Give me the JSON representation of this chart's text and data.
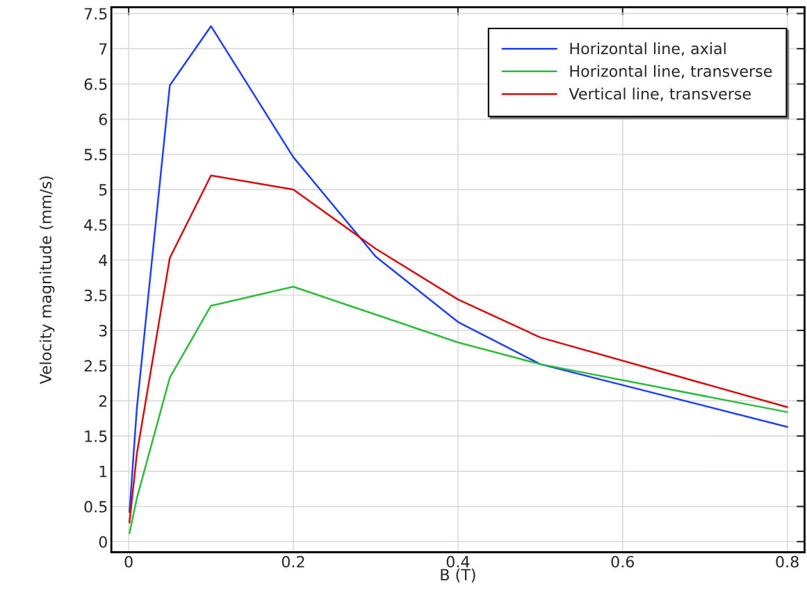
{
  "chart_data": {
    "type": "line",
    "xlabel": "B (T)",
    "ylabel": "Velocity magnitude (mm/s)",
    "xlim": [
      -0.021,
      0.821
    ],
    "ylim": [
      -0.15,
      7.59
    ],
    "xticks": [
      0,
      0.2,
      0.4,
      0.6,
      0.8
    ],
    "yticks": [
      0,
      0.5,
      1,
      1.5,
      2,
      2.5,
      3,
      3.5,
      4,
      4.5,
      5,
      5.5,
      6,
      6.5,
      7,
      7.5
    ],
    "grid": true,
    "legend": "top right",
    "marker": "none",
    "line_style": "solid",
    "series": [
      {
        "name": "Horizontal line, axial",
        "color": "#1f3ff5",
        "x": [
          0.001,
          0.01,
          0.05,
          0.1,
          0.2,
          0.3,
          0.4,
          0.5,
          0.8
        ],
        "values": [
          0.42,
          1.9,
          6.48,
          7.32,
          5.46,
          4.05,
          3.12,
          2.52,
          1.63
        ]
      },
      {
        "name": "Horizontal line, transverse",
        "color": "#2dbb3c",
        "x": [
          0.001,
          0.01,
          0.05,
          0.1,
          0.2,
          0.4,
          0.5,
          0.8
        ],
        "values": [
          0.12,
          0.62,
          2.33,
          3.35,
          3.62,
          2.83,
          2.52,
          1.84
        ]
      },
      {
        "name": "Vertical line, transverse",
        "color": "#d40c0c",
        "x": [
          0.001,
          0.01,
          0.05,
          0.1,
          0.2,
          0.3,
          0.4,
          0.5,
          0.8
        ],
        "values": [
          0.27,
          1.25,
          4.03,
          5.2,
          5.0,
          4.16,
          3.44,
          2.9,
          1.91
        ]
      }
    ]
  }
}
